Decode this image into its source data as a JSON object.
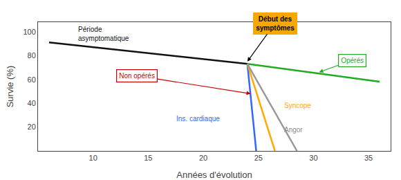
{
  "chart_data": {
    "type": "line",
    "xlabel": "Années d'évolution",
    "ylabel": "Survie (%)",
    "xlim": [
      5,
      37
    ],
    "ylim": [
      0,
      108
    ],
    "xticks": [
      10,
      15,
      20,
      25,
      30,
      35
    ],
    "yticks": [
      20,
      40,
      60,
      80,
      100
    ],
    "grid": false,
    "series": [
      {
        "color": "#111111",
        "x": [
          6,
          24
        ],
        "values": [
          91,
          73
        ]
      },
      {
        "color": "#22aa22",
        "x": [
          24,
          36
        ],
        "values": [
          73,
          58
        ]
      },
      {
        "color": "#3366ff",
        "x": [
          24,
          24.8
        ],
        "values": [
          73,
          0
        ]
      },
      {
        "color": "#ffaa00",
        "x": [
          24,
          26.5
        ],
        "values": [
          73,
          0
        ]
      },
      {
        "color": "#999999",
        "x": [
          24,
          28.5
        ],
        "values": [
          73,
          0
        ]
      }
    ],
    "annotations": [
      {
        "text": "Période\nasymptomatique",
        "x": 8.5,
        "y": 98,
        "color": "#111111",
        "align": "left"
      },
      {
        "text": "Début des\nsymptômes",
        "x": 26.5,
        "y": 107,
        "arrow_x": 24.0,
        "arrow_y": 75,
        "color": "#000000",
        "background": "#f5a800"
      },
      {
        "text": "Non opérés",
        "x": 14.0,
        "y": 63,
        "arrow_x": 24.3,
        "arrow_y": 48,
        "color": "#cc0000"
      },
      {
        "text": "Ins. cardiaque",
        "x": 19.5,
        "y": 27,
        "color": "#3366ff"
      },
      {
        "text": "Syncope",
        "x": 27.2,
        "y": 38,
        "color": "#ffaa00",
        "align": "left"
      },
      {
        "text": "Angor",
        "x": 27.2,
        "y": 18,
        "color": "#888888",
        "align": "left"
      },
      {
        "text": "Opérés",
        "x": 33.5,
        "y": 76,
        "arrow_x": 30.5,
        "arrow_y": 66,
        "color": "#22aa22"
      }
    ]
  }
}
